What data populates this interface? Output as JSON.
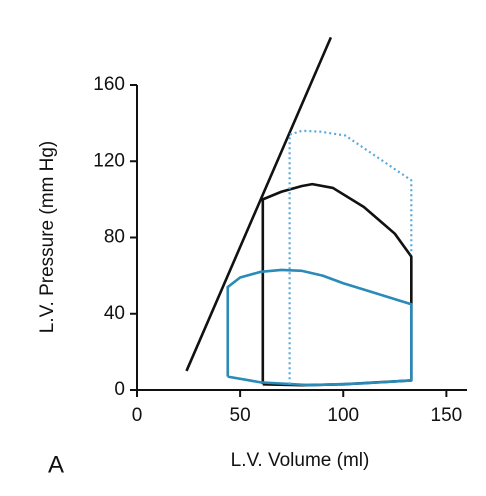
{
  "chart_data": {
    "type": "line",
    "xlabel": "L.V. Volume (ml)",
    "ylabel": "L.V. Pressure (mm Hg)",
    "panel_label": "A",
    "xlim": [
      0,
      160
    ],
    "xticks": [
      0,
      50,
      100,
      150
    ],
    "ylim": [
      0,
      160
    ],
    "yticks": [
      0,
      40,
      80,
      120,
      160
    ],
    "series": [
      {
        "color": "#111111",
        "style": "solid",
        "x": [
          24,
          94
        ],
        "values": [
          10,
          185
        ]
      },
      {
        "color": "#111111",
        "style": "solid",
        "x": [
          61,
          61,
          70,
          80,
          85,
          95,
          110,
          125,
          133,
          133,
          100,
          80,
          61
        ],
        "values": [
          3,
          100,
          104,
          107,
          108,
          106,
          96,
          82,
          70,
          5,
          3,
          2.5,
          3
        ]
      },
      {
        "color": "#2a8ab8",
        "style": "solid",
        "x": [
          44,
          44,
          50,
          60,
          70,
          80,
          90,
          100,
          115,
          133,
          133,
          110,
          84,
          60,
          44
        ],
        "values": [
          7,
          54,
          59,
          62,
          63,
          62.5,
          60,
          56,
          51,
          45,
          5,
          3.5,
          2.5,
          4,
          7
        ]
      },
      {
        "color": "#5aaad8",
        "style": "dotted",
        "x": [
          74,
          74,
          80,
          89,
          101,
          133,
          133
        ],
        "values": [
          3,
          134,
          136,
          135.5,
          133.5,
          110,
          71
        ]
      }
    ]
  }
}
